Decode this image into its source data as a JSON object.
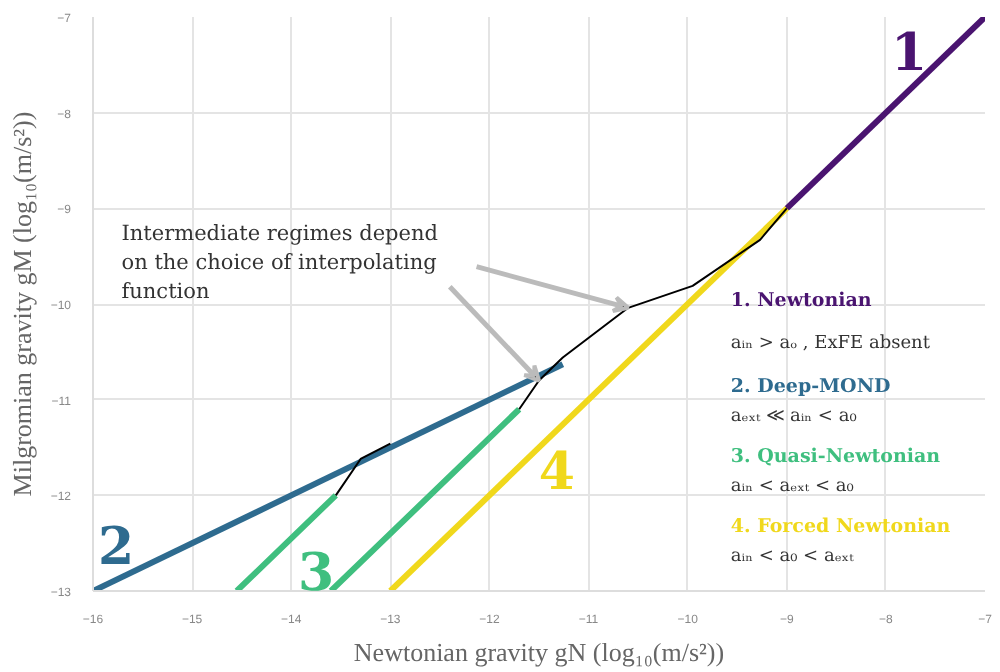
{
  "chart_data": {
    "type": "line",
    "xlabel": "Newtonian gravity gN (log₁₀(m/s²))",
    "ylabel": "Milgromian gravity gM (log₁₀(m/s²))",
    "xlim": [
      -16,
      -7
    ],
    "ylim": [
      -13,
      -7
    ],
    "xticks": [
      -16,
      -15,
      -14,
      -13,
      -12,
      -11,
      -10,
      -9,
      -8,
      -7
    ],
    "yticks": [
      -13,
      -12,
      -11,
      -10,
      -9,
      -8,
      -7
    ],
    "grid": true,
    "legend": "bottom right",
    "series": [
      {
        "name": "1. Newtonian",
        "color": "#4a1470",
        "x": [
          -9,
          -7
        ],
        "values": [
          -9,
          -7
        ]
      },
      {
        "name": "2. Deep-MOND",
        "color": "#2e6b8f",
        "x": [
          -16,
          -11.26
        ],
        "values": [
          -13,
          -10.63
        ]
      },
      {
        "name": "3. Quasi-Newtonian",
        "color": "#3fbf7f",
        "x": [
          -14.55,
          -13.55,
          -13.57,
          -13.6,
          -11.7
        ],
        "values": [
          -13,
          -12,
          null,
          -13,
          -11.1
        ]
      },
      {
        "name": "4. Forced Newtonian",
        "color": "#f0d81c",
        "x": [
          -13,
          -9
        ],
        "values": [
          -13,
          -9
        ]
      },
      {
        "color": "#000000",
        "x": [
          -13.55,
          -13.3,
          -13.0
        ],
        "values": [
          -12.0,
          -11.62,
          -11.46
        ]
      },
      {
        "color": "#000000",
        "x": [
          -11.7,
          -11.5,
          -11.26,
          -10.6,
          -9.95,
          -9.27,
          -9.0
        ],
        "values": [
          -11.1,
          -10.8,
          -10.56,
          -10.04,
          -9.81,
          -9.33,
          -9.0
        ]
      }
    ],
    "annotations": [
      "1",
      "2",
      "3",
      "4",
      "aᵢₙ > aₒ , ExFE absent",
      "aₑₓₜ ≪ aᵢₙ < a₀",
      "aᵢₙ < aₑₓₜ < a₀",
      "aᵢₙ < a₀ < aₑₓₜ",
      {
        "text": "Intermediate regimes depend\non the choice of interpolating\nfunction",
        "x": -11.5,
        "y": -10.8
      }
    ]
  }
}
